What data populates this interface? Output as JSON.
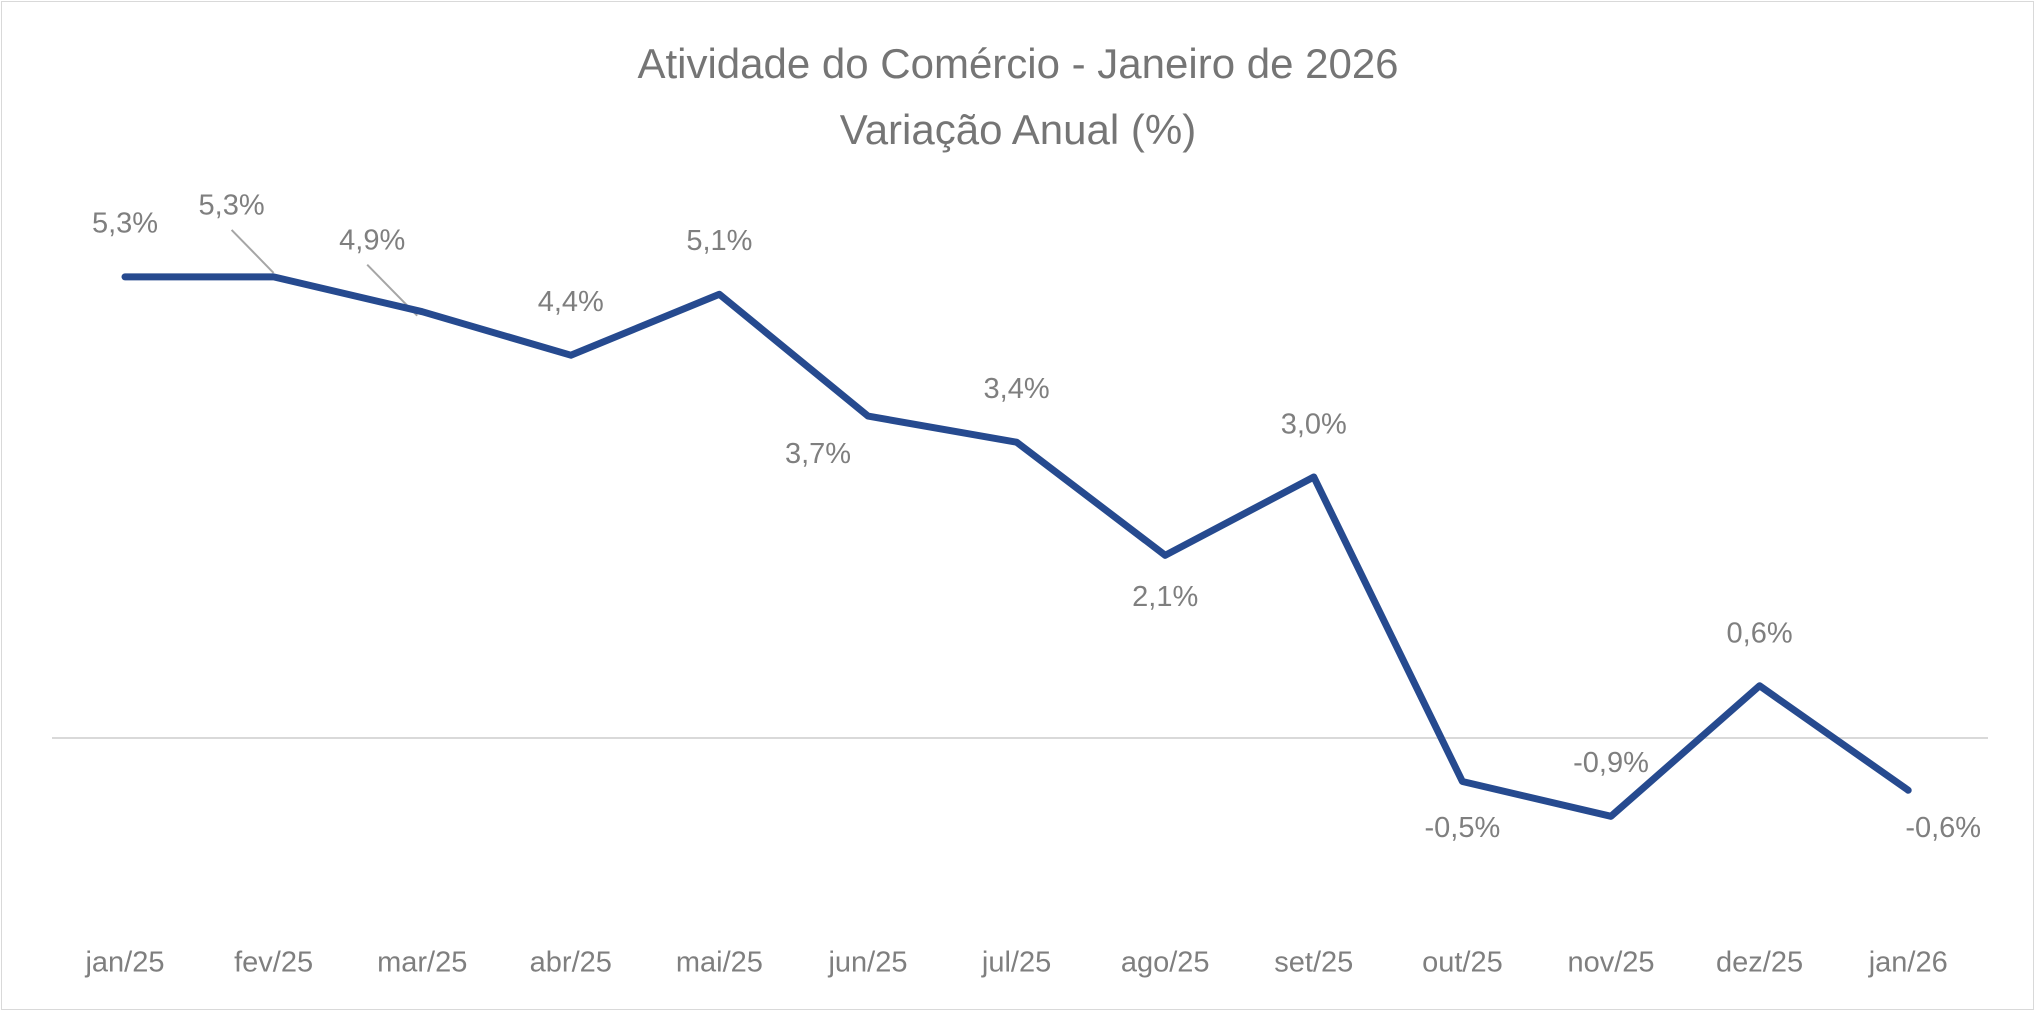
{
  "chart_data": {
    "type": "line",
    "title": "Atividade do Comércio - Janeiro de 2026",
    "subtitle": "Variação Anual (%)",
    "xlabel": "",
    "ylabel": "",
    "categories": [
      "jan/25",
      "fev/25",
      "mar/25",
      "abr/25",
      "mai/25",
      "jun/25",
      "jul/25",
      "ago/25",
      "set/25",
      "out/25",
      "nov/25",
      "dez/25",
      "jan/26"
    ],
    "series": [
      {
        "name": "Variação Anual (%)",
        "color": "#264a8f",
        "values": [
          5.3,
          5.3,
          4.9,
          4.4,
          5.1,
          3.7,
          3.4,
          2.1,
          3.0,
          -0.5,
          -0.9,
          0.6,
          -0.6
        ],
        "labels": [
          "5,3%",
          "5,3%",
          "4,9%",
          "4,4%",
          "5,1%",
          "3,7%",
          "3,4%",
          "2,1%",
          "3,0%",
          "-0,5%",
          "-0,9%",
          "0,6%",
          "-0,6%"
        ]
      }
    ],
    "ylim": [
      -2,
      7
    ],
    "grid": false,
    "legend": "none"
  }
}
